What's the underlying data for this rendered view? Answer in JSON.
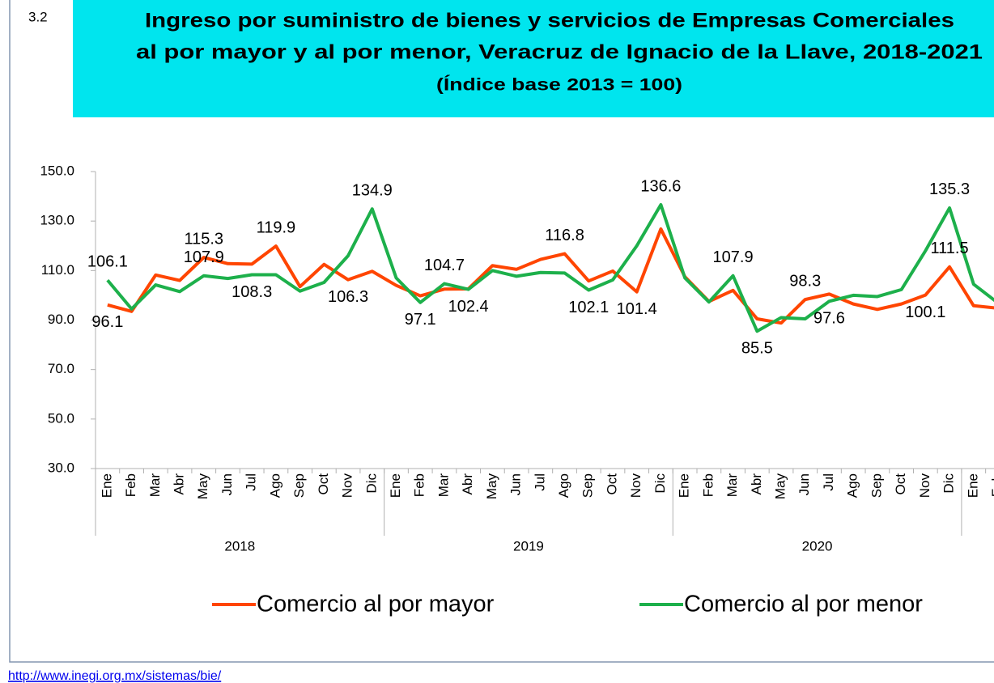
{
  "chart_data": {
    "type": "line",
    "number": "3.2",
    "title": "Ingreso por suministro de bienes y servicios de Empresas Comerciales",
    "title_line2": "al por mayor y al por menor, Veracruz de Ignacio de la Llave, 2018-2021",
    "subtitle": "(Índice base 2013 = 100)",
    "categories": [
      "Ene",
      "Feb",
      "Mar",
      "Abr",
      "May",
      "Jun",
      "Jul",
      "Ago",
      "Sep",
      "Oct",
      "Nov",
      "Dic",
      "Ene",
      "Feb",
      "Mar",
      "Abr",
      "May",
      "Jun",
      "Jul",
      "Ago",
      "Sep",
      "Oct",
      "Nov",
      "Dic",
      "Ene",
      "Feb",
      "Mar",
      "Abr",
      "May",
      "Jun",
      "Jul",
      "Ago",
      "Sep",
      "Oct",
      "Nov",
      "Dic",
      "Ene",
      "Feb"
    ],
    "years": [
      "2018",
      "2019",
      "2020"
    ],
    "series": [
      {
        "name": "Comercio al por mayor",
        "color": "#ff4500",
        "values": [
          96.1,
          93.5,
          108.2,
          106,
          115.3,
          112.8,
          112.6,
          119.9,
          103.5,
          112.5,
          106.3,
          109.7,
          104,
          99.8,
          102.5,
          102.6,
          112,
          110.5,
          114.5,
          116.8,
          105.8,
          109.8,
          101.4,
          126.8,
          107.5,
          97.5,
          102,
          90.5,
          88.8,
          98.3,
          100.5,
          96.5,
          94.3,
          96.5,
          100.1,
          111.5,
          95.8,
          94.8
        ],
        "value_labels": [
          "96.1",
          null,
          null,
          null,
          "115.3",
          null,
          null,
          "119.9",
          null,
          null,
          "106.3",
          null,
          null,
          null,
          null,
          null,
          null,
          null,
          null,
          "116.8",
          null,
          null,
          "101.4",
          null,
          null,
          null,
          null,
          null,
          null,
          "98.3",
          null,
          null,
          null,
          null,
          "100.1",
          "111.5",
          null,
          null
        ]
      },
      {
        "name": "Comercio al por menor",
        "color": "#1db04b",
        "values": [
          106.1,
          94.5,
          104.2,
          101.5,
          107.9,
          106.8,
          108.3,
          108.3,
          101.7,
          105.2,
          116,
          134.9,
          107,
          97.1,
          104.7,
          102.4,
          110,
          107.7,
          109.2,
          109,
          102.1,
          106.2,
          120,
          136.6,
          107,
          97.3,
          107.9,
          85.5,
          91,
          90.5,
          97.6,
          100,
          99.5,
          102.3,
          118,
          135.3,
          104.5,
          97
        ],
        "value_labels": [
          "106.1",
          null,
          null,
          null,
          "107.9",
          null,
          "108.3",
          null,
          null,
          null,
          null,
          "134.9",
          null,
          "97.1",
          "104.7",
          "102.4",
          null,
          null,
          null,
          null,
          "102.1",
          null,
          null,
          "136.6",
          null,
          null,
          "107.9",
          "85.5",
          null,
          null,
          "97.6",
          null,
          null,
          null,
          null,
          "135.3",
          null,
          null
        ]
      }
    ],
    "ylim": [
      30,
      150
    ],
    "yticks": [
      {
        "value": 30,
        "label": "30.0"
      },
      {
        "value": 50,
        "label": "50.0"
      },
      {
        "value": 70,
        "label": "70.0"
      },
      {
        "value": 90,
        "label": "90.0"
      },
      {
        "value": 110,
        "label": "110.0"
      },
      {
        "value": 130,
        "label": "130.0"
      },
      {
        "value": 150,
        "label": "150.0"
      }
    ],
    "grid": false,
    "legend": "bottom",
    "source": "http://www.inegi.org.mx/sistemas/bie/"
  }
}
